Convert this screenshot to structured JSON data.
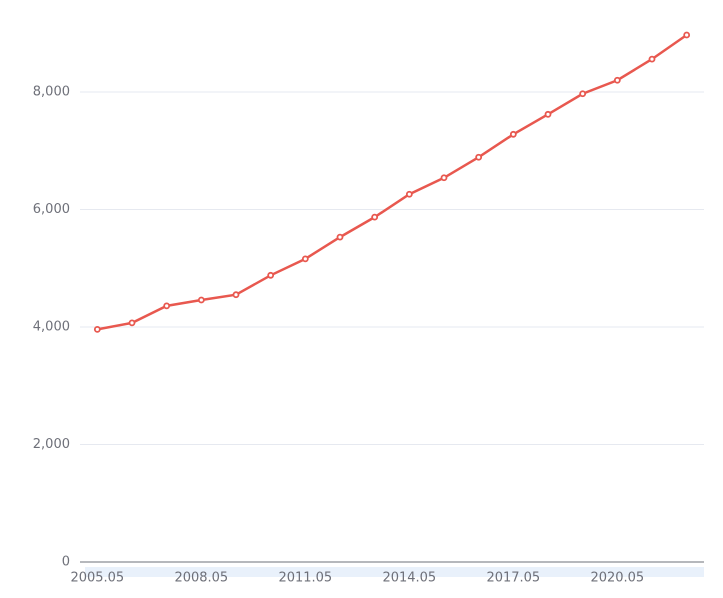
{
  "chart_data": {
    "type": "line",
    "categories": [
      "2005.05",
      null,
      null,
      "2008.05",
      null,
      null,
      "2011.05",
      null,
      null,
      "2014.05",
      null,
      null,
      "2017.05",
      null,
      null,
      "2020.05",
      null,
      null
    ],
    "series": [
      {
        "color": "#e8584f",
        "values": [
          3960,
          4070,
          4360,
          4460,
          4550,
          4880,
          5160,
          5530,
          5870,
          6260,
          6540,
          6890,
          7280,
          7620,
          7970,
          8200,
          8560,
          8970
        ]
      }
    ],
    "ylim": [
      0,
      9000
    ],
    "yticks": [
      0,
      {
        "value": 2000,
        "label": "2,000"
      },
      {
        "value": 4000,
        "label": "4,000"
      },
      {
        "value": 6000,
        "label": "6,000"
      },
      {
        "value": 8000,
        "label": "8,000"
      }
    ],
    "grid": true
  }
}
